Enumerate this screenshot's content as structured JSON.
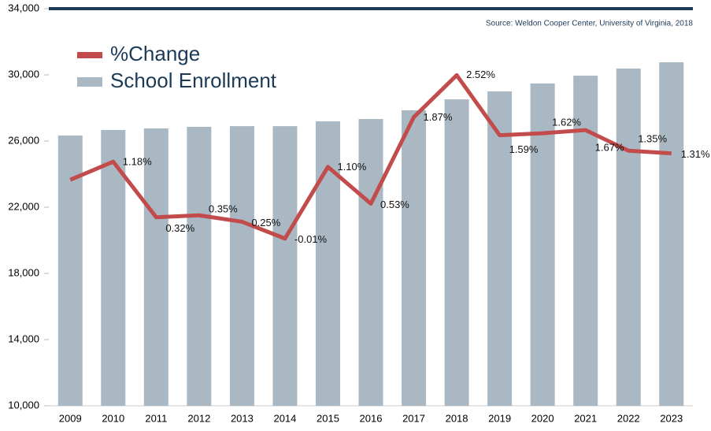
{
  "chart_data": {
    "type": "bar-line",
    "source": "Source: Weldon Cooper Center, University of Virginia, 2018",
    "categories": [
      "2009",
      "2010",
      "2011",
      "2012",
      "2013",
      "2014",
      "2015",
      "2016",
      "2017",
      "2018",
      "2019",
      "2020",
      "2021",
      "2022",
      "2023"
    ],
    "series": [
      {
        "name": "School Enrollment",
        "type": "bar",
        "color": "#a9b8c2",
        "values": [
          26330,
          26670,
          26760,
          26860,
          26900,
          26900,
          27190,
          27330,
          27860,
          28520,
          29000,
          29480,
          29950,
          30380,
          30760
        ]
      },
      {
        "name": "%Change",
        "type": "line",
        "axis": "y2",
        "color": "#c24b4b",
        "values": [
          0.9,
          1.18,
          0.32,
          0.35,
          0.25,
          -0.01,
          1.1,
          0.53,
          1.87,
          2.52,
          1.59,
          1.62,
          1.67,
          1.35,
          1.31
        ],
        "value_labels": [
          null,
          "1.18%",
          "0.32%",
          "0.35%",
          "0.25%",
          "-0.01%",
          "1.10%",
          "0.53%",
          "1.87%",
          "2.52%",
          "1.59%",
          "1.62%",
          "1.67%",
          "1.35%",
          "1.31%"
        ]
      }
    ],
    "ylim": [
      10000,
      34000
    ],
    "yticks": [
      {
        "value": 10000,
        "label": "10,000"
      },
      {
        "value": 14000,
        "label": "14,000"
      },
      {
        "value": 18000,
        "label": "18,000"
      },
      {
        "value": 22000,
        "label": "22,000"
      },
      {
        "value": 26000,
        "label": "26,000"
      },
      {
        "value": 30000,
        "label": "30,000"
      },
      {
        "value": 34000,
        "label": "34,000"
      }
    ],
    "y2lim": [
      -2.6,
      3.55
    ],
    "legend": "upper left"
  }
}
